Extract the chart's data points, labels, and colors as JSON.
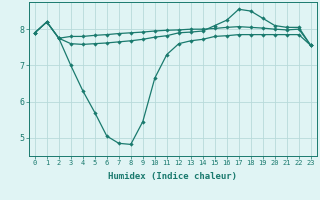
{
  "xlabel": "Humidex (Indice chaleur)",
  "x": [
    0,
    1,
    2,
    3,
    4,
    5,
    6,
    7,
    8,
    9,
    10,
    11,
    12,
    13,
    14,
    15,
    16,
    17,
    18,
    19,
    20,
    21,
    22,
    23
  ],
  "series1": [
    7.9,
    8.2,
    7.75,
    7.8,
    7.8,
    7.83,
    7.85,
    7.88,
    7.9,
    7.92,
    7.95,
    7.97,
    7.98,
    8.0,
    8.0,
    8.02,
    8.05,
    8.07,
    8.05,
    8.03,
    8.0,
    7.98,
    8.0,
    7.55
  ],
  "series2": [
    7.9,
    8.2,
    7.75,
    7.6,
    7.58,
    7.6,
    7.62,
    7.65,
    7.68,
    7.72,
    7.78,
    7.82,
    7.9,
    7.92,
    7.95,
    8.1,
    8.25,
    8.55,
    8.5,
    8.3,
    8.1,
    8.05,
    8.05,
    7.55
  ],
  "series3": [
    7.9,
    8.2,
    7.75,
    7.0,
    6.3,
    5.7,
    5.05,
    4.85,
    4.82,
    5.45,
    6.65,
    7.3,
    7.6,
    7.68,
    7.72,
    7.8,
    7.82,
    7.85,
    7.85,
    7.85,
    7.85,
    7.85,
    7.85,
    7.55
  ],
  "line_color": "#1a7a6e",
  "bg_color": "#e0f4f4",
  "grid_color": "#b8dada",
  "ylim": [
    4.5,
    8.75
  ],
  "yticks": [
    5,
    6,
    7,
    8
  ],
  "xticks": [
    0,
    1,
    2,
    3,
    4,
    5,
    6,
    7,
    8,
    9,
    10,
    11,
    12,
    13,
    14,
    15,
    16,
    17,
    18,
    19,
    20,
    21,
    22,
    23
  ]
}
